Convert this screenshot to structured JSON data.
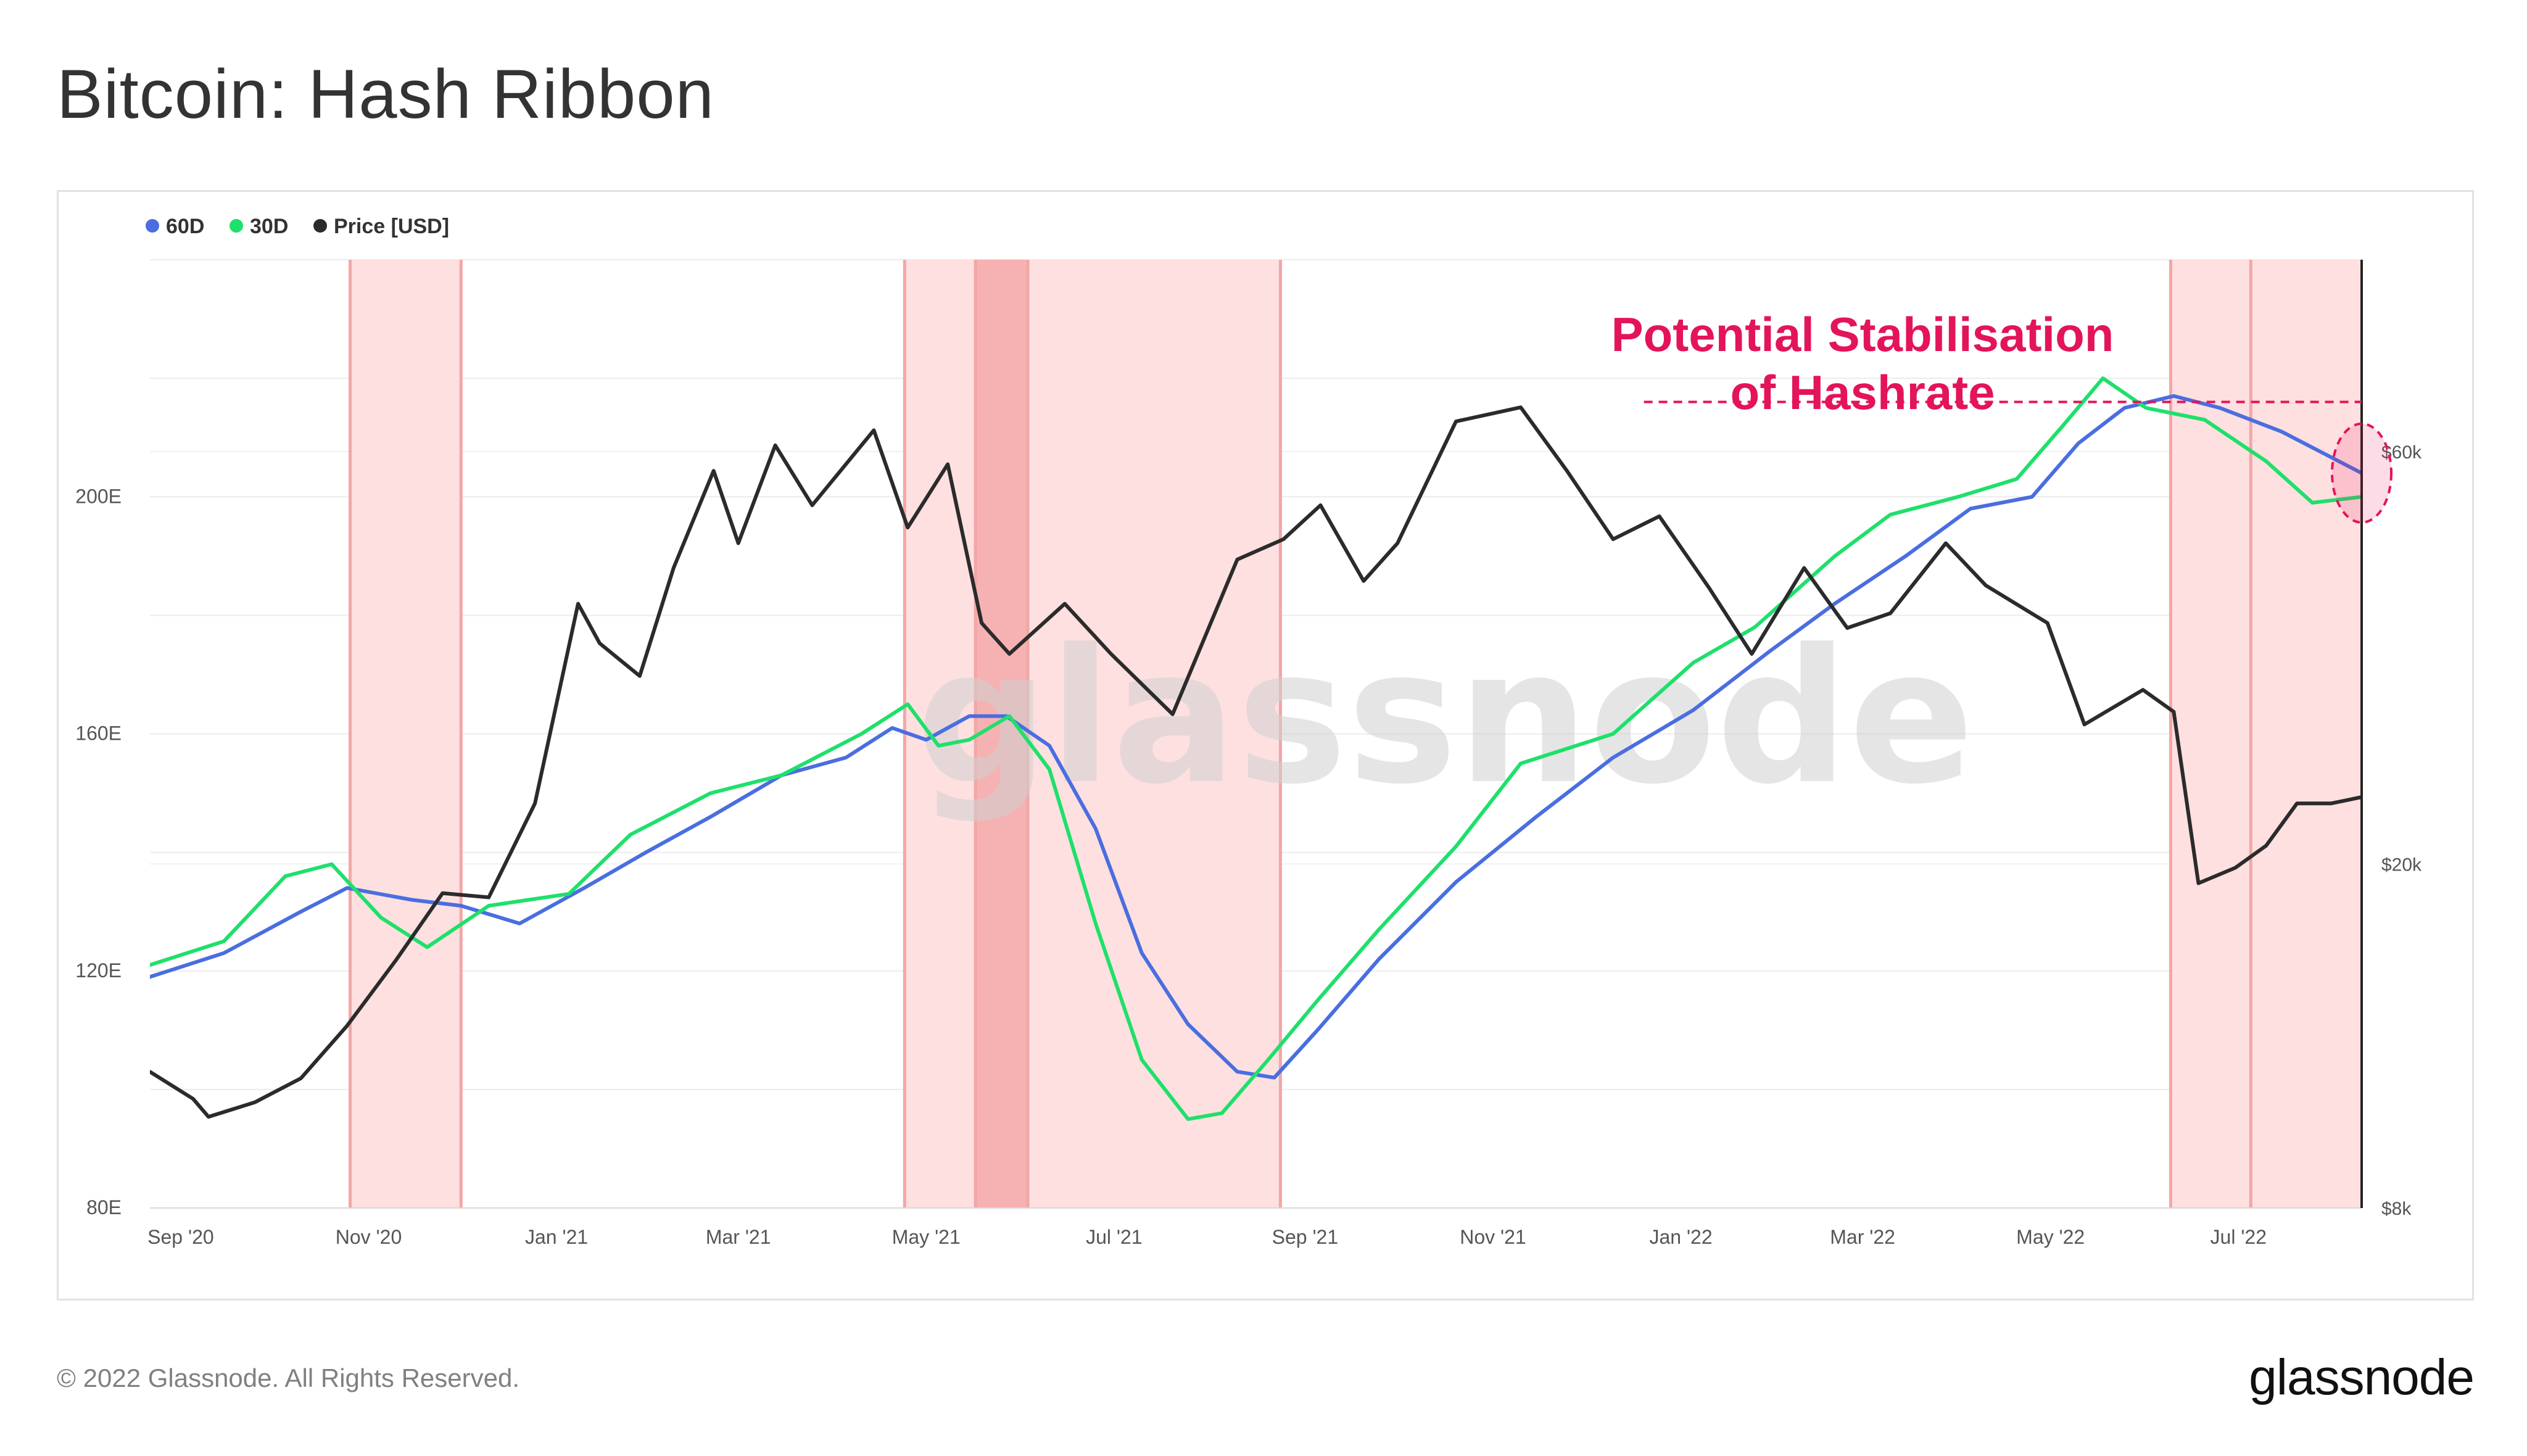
{
  "page": {
    "title": "Bitcoin: Hash Ribbon",
    "copyright": "© 2022 Glassnode. All Rights Reserved.",
    "logo": "glassnode",
    "watermark": "glassnode"
  },
  "chart_data": {
    "type": "line",
    "title": "Bitcoin: Hash Ribbon",
    "legend_position": "top-left",
    "x_range": [
      "2020-08-22",
      "2022-08-10"
    ],
    "x_ticks": [
      {
        "date": "2020-09-01",
        "label": "Sep '20"
      },
      {
        "date": "2020-11-01",
        "label": "Nov '20"
      },
      {
        "date": "2021-01-01",
        "label": "Jan '21"
      },
      {
        "date": "2021-03-01",
        "label": "Mar '21"
      },
      {
        "date": "2021-05-01",
        "label": "May '21"
      },
      {
        "date": "2021-07-01",
        "label": "Jul '21"
      },
      {
        "date": "2021-09-01",
        "label": "Sep '21"
      },
      {
        "date": "2021-11-01",
        "label": "Nov '21"
      },
      {
        "date": "2022-01-01",
        "label": "Jan '22"
      },
      {
        "date": "2022-03-01",
        "label": "Mar '22"
      },
      {
        "date": "2022-05-01",
        "label": "May '22"
      },
      {
        "date": "2022-07-01",
        "label": "Jul '22"
      }
    ],
    "y_left": {
      "scale": "linear",
      "unit": "E",
      "range": [
        80,
        240
      ],
      "ticks": [
        80,
        120,
        160,
        200
      ],
      "tick_labels": [
        "80E",
        "120E",
        "160E",
        "200E"
      ]
    },
    "y_right": {
      "scale": "log",
      "range": [
        8000,
        100000
      ],
      "ticks": [
        8000,
        20000,
        60000
      ],
      "tick_labels": [
        "$8k",
        "$20k",
        "$60k"
      ]
    },
    "grid": true,
    "series": [
      {
        "name": "60D",
        "color": "#4a6ee0",
        "axis": "left",
        "points": [
          [
            "2020-08-22",
            119
          ],
          [
            "2020-09-15",
            123
          ],
          [
            "2020-10-10",
            130
          ],
          [
            "2020-10-25",
            134
          ],
          [
            "2020-11-15",
            132
          ],
          [
            "2020-12-01",
            131
          ],
          [
            "2020-12-20",
            128
          ],
          [
            "2021-01-10",
            134
          ],
          [
            "2021-01-30",
            140
          ],
          [
            "2021-02-20",
            146
          ],
          [
            "2021-03-15",
            153
          ],
          [
            "2021-04-05",
            156
          ],
          [
            "2021-04-20",
            161
          ],
          [
            "2021-05-01",
            159
          ],
          [
            "2021-05-15",
            163
          ],
          [
            "2021-05-27",
            163
          ],
          [
            "2021-06-10",
            158
          ],
          [
            "2021-06-25",
            144
          ],
          [
            "2021-07-10",
            123
          ],
          [
            "2021-07-25",
            111
          ],
          [
            "2021-08-10",
            103
          ],
          [
            "2021-08-22",
            102
          ],
          [
            "2021-09-05",
            110
          ],
          [
            "2021-09-25",
            122
          ],
          [
            "2021-10-20",
            135
          ],
          [
            "2021-11-15",
            146
          ],
          [
            "2021-12-10",
            156
          ],
          [
            "2022-01-05",
            164
          ],
          [
            "2022-01-30",
            174
          ],
          [
            "2022-02-20",
            182
          ],
          [
            "2022-03-15",
            190
          ],
          [
            "2022-04-05",
            198
          ],
          [
            "2022-04-25",
            200
          ],
          [
            "2022-05-10",
            209
          ],
          [
            "2022-05-25",
            215
          ],
          [
            "2022-06-10",
            217
          ],
          [
            "2022-06-25",
            215
          ],
          [
            "2022-07-15",
            211
          ],
          [
            "2022-08-10",
            204
          ]
        ]
      },
      {
        "name": "30D",
        "color": "#1ee06b",
        "axis": "left",
        "points": [
          [
            "2020-08-22",
            121
          ],
          [
            "2020-09-15",
            125
          ],
          [
            "2020-10-05",
            136
          ],
          [
            "2020-10-20",
            138
          ],
          [
            "2020-11-05",
            129
          ],
          [
            "2020-11-20",
            124
          ],
          [
            "2020-12-10",
            131
          ],
          [
            "2021-01-05",
            133
          ],
          [
            "2021-01-25",
            143
          ],
          [
            "2021-02-20",
            150
          ],
          [
            "2021-03-15",
            153
          ],
          [
            "2021-04-10",
            160
          ],
          [
            "2021-04-25",
            165
          ],
          [
            "2021-05-05",
            158
          ],
          [
            "2021-05-15",
            159
          ],
          [
            "2021-05-28",
            163
          ],
          [
            "2021-06-10",
            154
          ],
          [
            "2021-06-25",
            128
          ],
          [
            "2021-07-10",
            105
          ],
          [
            "2021-07-25",
            95
          ],
          [
            "2021-08-05",
            96
          ],
          [
            "2021-08-20",
            105
          ],
          [
            "2021-09-05",
            115
          ],
          [
            "2021-09-25",
            127
          ],
          [
            "2021-10-20",
            141
          ],
          [
            "2021-11-10",
            155
          ],
          [
            "2021-12-10",
            160
          ],
          [
            "2022-01-05",
            172
          ],
          [
            "2022-01-25",
            178
          ],
          [
            "2022-02-20",
            190
          ],
          [
            "2022-03-10",
            197
          ],
          [
            "2022-04-01",
            200
          ],
          [
            "2022-04-20",
            203
          ],
          [
            "2022-05-05",
            212
          ],
          [
            "2022-05-18",
            220
          ],
          [
            "2022-06-01",
            215
          ],
          [
            "2022-06-20",
            213
          ],
          [
            "2022-07-10",
            206
          ],
          [
            "2022-07-25",
            199
          ],
          [
            "2022-08-10",
            200
          ]
        ]
      },
      {
        "name": "Price [USD]",
        "color": "#2b2b2b",
        "axis": "right",
        "points": [
          [
            "2020-08-22",
            11500
          ],
          [
            "2020-09-05",
            10700
          ],
          [
            "2020-09-10",
            10200
          ],
          [
            "2020-09-25",
            10600
          ],
          [
            "2020-10-10",
            11300
          ],
          [
            "2020-10-25",
            13000
          ],
          [
            "2020-11-10",
            15500
          ],
          [
            "2020-11-25",
            18500
          ],
          [
            "2020-12-10",
            18300
          ],
          [
            "2020-12-25",
            23500
          ],
          [
            "2021-01-08",
            40000
          ],
          [
            "2021-01-15",
            36000
          ],
          [
            "2021-01-28",
            33000
          ],
          [
            "2021-02-08",
            44000
          ],
          [
            "2021-02-21",
            57000
          ],
          [
            "2021-03-01",
            47000
          ],
          [
            "2021-03-13",
            61000
          ],
          [
            "2021-03-25",
            52000
          ],
          [
            "2021-04-14",
            63500
          ],
          [
            "2021-04-25",
            49000
          ],
          [
            "2021-05-08",
            58000
          ],
          [
            "2021-05-19",
            38000
          ],
          [
            "2021-05-28",
            35000
          ],
          [
            "2021-06-15",
            40000
          ],
          [
            "2021-06-30",
            35000
          ],
          [
            "2021-07-20",
            29800
          ],
          [
            "2021-08-10",
            45000
          ],
          [
            "2021-08-25",
            47500
          ],
          [
            "2021-09-06",
            52000
          ],
          [
            "2021-09-20",
            42500
          ],
          [
            "2021-10-01",
            47000
          ],
          [
            "2021-10-20",
            65000
          ],
          [
            "2021-11-10",
            67500
          ],
          [
            "2021-11-25",
            57000
          ],
          [
            "2021-12-10",
            47500
          ],
          [
            "2021-12-25",
            50500
          ],
          [
            "2022-01-10",
            41800
          ],
          [
            "2022-01-24",
            35000
          ],
          [
            "2022-02-10",
            44000
          ],
          [
            "2022-02-24",
            37500
          ],
          [
            "2022-03-10",
            39000
          ],
          [
            "2022-03-28",
            47000
          ],
          [
            "2022-04-10",
            42000
          ],
          [
            "2022-04-30",
            38000
          ],
          [
            "2022-05-12",
            29000
          ],
          [
            "2022-05-31",
            31800
          ],
          [
            "2022-06-10",
            30000
          ],
          [
            "2022-06-18",
            19000
          ],
          [
            "2022-06-30",
            19800
          ],
          [
            "2022-07-10",
            21000
          ],
          [
            "2022-07-20",
            23500
          ],
          [
            "2022-07-31",
            23500
          ],
          [
            "2022-08-10",
            23900
          ]
        ]
      }
    ],
    "capitulation_bands": [
      [
        "2020-10-26",
        "2020-12-01"
      ],
      [
        "2021-04-24",
        "2021-08-24"
      ],
      [
        "2022-06-09",
        "2022-08-10"
      ]
    ],
    "capitulation_dark_band": [
      "2021-05-17",
      "2021-06-03"
    ],
    "band_edge_lines": [
      "2020-10-26",
      "2020-12-01",
      "2021-04-24",
      "2021-05-17",
      "2021-06-03",
      "2021-08-24",
      "2022-06-09",
      "2022-07-05"
    ],
    "annotations": [
      {
        "text_line1": "Potential Stabilisation",
        "text_line2": "of Hashrate",
        "color": "#e3145b"
      }
    ]
  }
}
